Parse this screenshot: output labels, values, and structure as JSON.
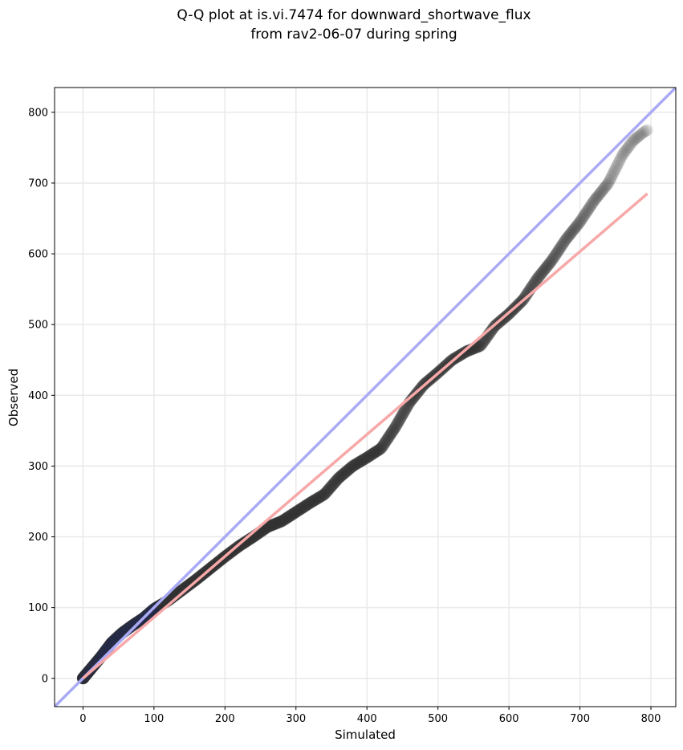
{
  "chart_data": {
    "type": "scatter",
    "title_lines": [
      "Q-Q plot at is.vi.7474 for downward_shortwave_flux",
      "from rav2-06-07 during spring"
    ],
    "xlabel": "Simulated",
    "ylabel": "Observed",
    "xlim": [
      -40,
      835
    ],
    "ylim": [
      -40,
      835
    ],
    "xticks": [
      0,
      100,
      200,
      300,
      400,
      500,
      600,
      700,
      800
    ],
    "yticks": [
      0,
      100,
      200,
      300,
      400,
      500,
      600,
      700,
      800
    ],
    "grid": true,
    "colors": {
      "points": "#333333",
      "highlight_points": "#0b1f7a",
      "identity_line": "#aaaaf5",
      "fit_line": "#f7a8a8",
      "grid": "#e9e9e9",
      "axes": "#000000"
    },
    "identity_line": {
      "x": [
        -40,
        835
      ],
      "y": [
        -40,
        835
      ]
    },
    "fit_line": {
      "x": [
        0,
        795
      ],
      "y": [
        0,
        685
      ]
    },
    "quantile_curve": {
      "x": [
        0,
        10,
        25,
        40,
        55,
        70,
        85,
        100,
        120,
        140,
        160,
        180,
        200,
        220,
        240,
        260,
        280,
        300,
        320,
        340,
        360,
        380,
        400,
        420,
        440,
        460,
        480,
        500,
        520,
        540,
        560,
        580,
        600,
        620,
        640,
        660,
        680,
        700,
        720,
        740,
        760,
        775,
        790,
        795
      ],
      "y": [
        0,
        12,
        30,
        50,
        64,
        75,
        85,
        98,
        110,
        125,
        140,
        156,
        172,
        187,
        200,
        214,
        222,
        235,
        248,
        260,
        283,
        300,
        312,
        325,
        355,
        390,
        415,
        432,
        450,
        462,
        470,
        498,
        515,
        535,
        565,
        590,
        620,
        645,
        675,
        700,
        740,
        760,
        772,
        775
      ]
    },
    "highlight_range": [
      0,
      110
    ],
    "series": [
      {
        "type": "points"
      },
      {
        "type": "identity_line"
      },
      {
        "type": "fit_line"
      }
    ]
  }
}
